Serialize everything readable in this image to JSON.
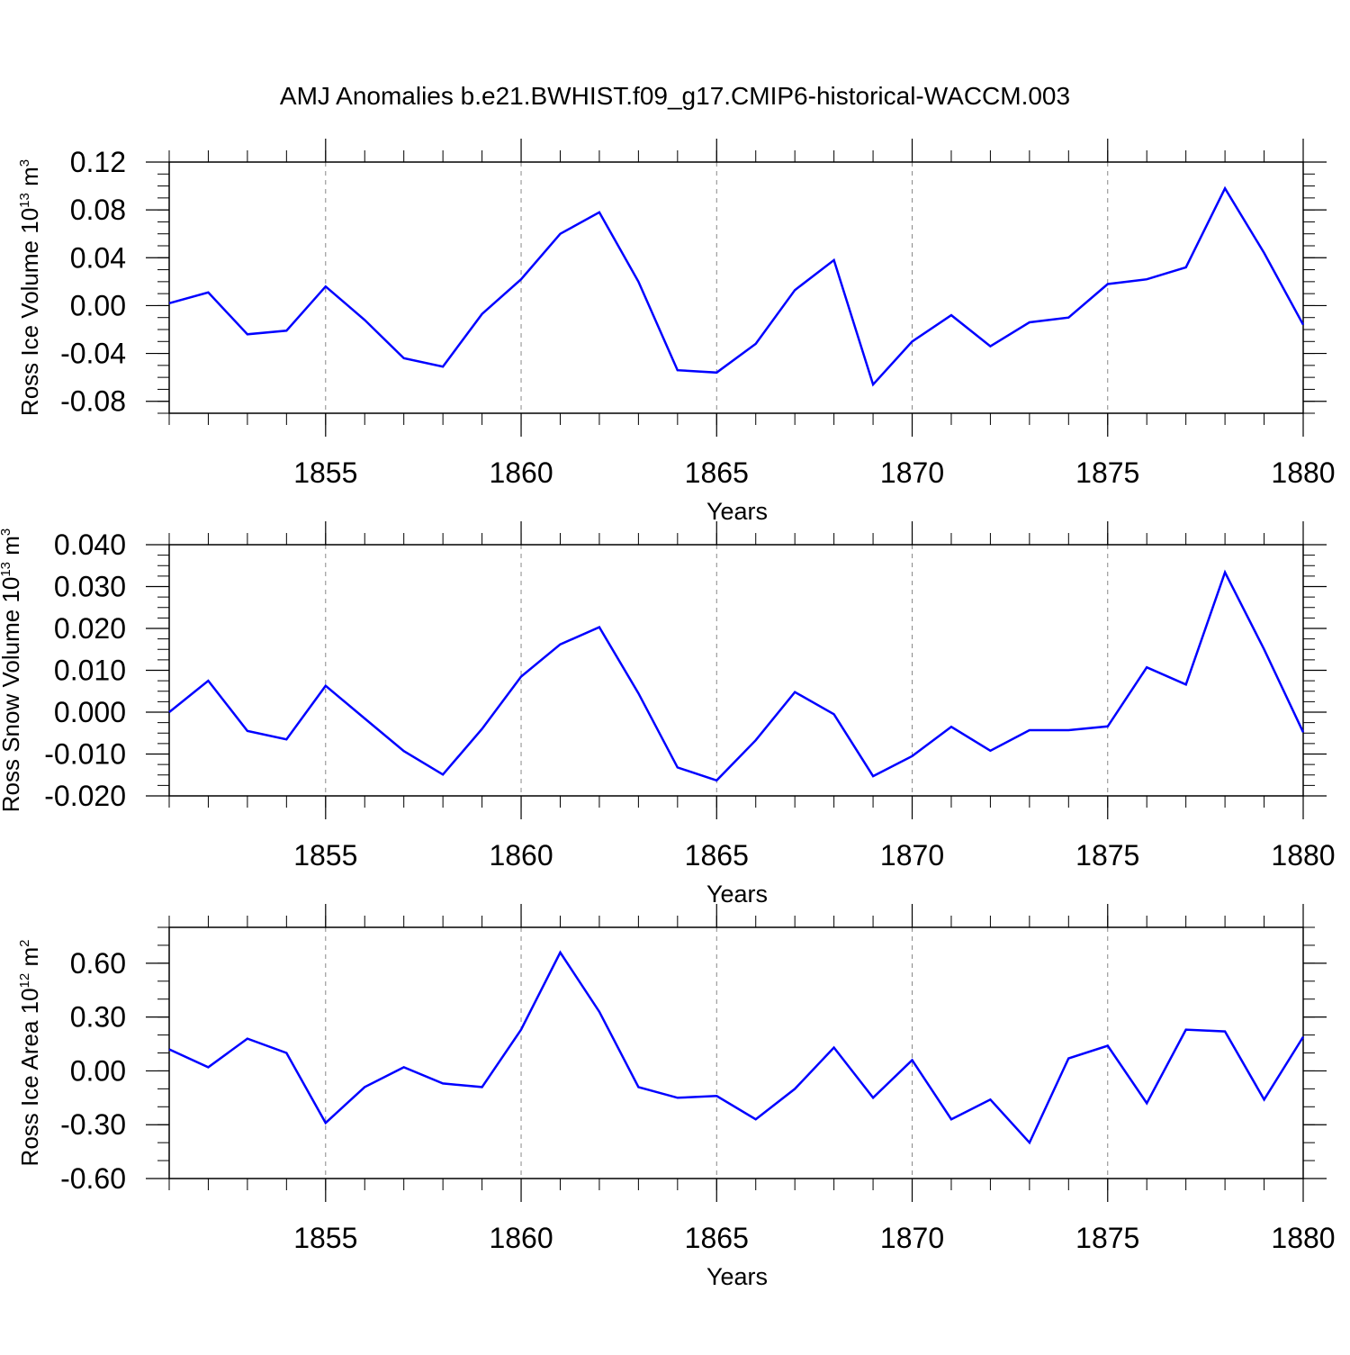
{
  "title": "AMJ Anomalies b.e21.BWHIST.f09_g17.CMIP6-historical-WACCM.003",
  "colors": {
    "line": "#0000ff",
    "axis": "#000000",
    "grid": "#888888"
  },
  "chart_data": [
    {
      "type": "line",
      "ylabel": {
        "text": "Ross Ice Volume 10",
        "sup": "13",
        "unit": " m",
        "unit_sup": "3"
      },
      "xlabel": "Years",
      "xlim": [
        1851,
        1880
      ],
      "ylim": [
        -0.09,
        0.12
      ],
      "xticks": [
        1855,
        1860,
        1865,
        1870,
        1875,
        1880
      ],
      "xtick_labels": [
        "1855",
        "1860",
        "1865",
        "1870",
        "1875",
        "1880"
      ],
      "yticks": [
        -0.08,
        -0.04,
        0.0,
        0.04,
        0.08,
        0.12
      ],
      "ytick_labels": [
        "-0.08",
        "-0.04",
        "0.00",
        "0.04",
        "0.08",
        "0.12"
      ],
      "yminor_step": 0.01,
      "grid": "vertical-dashed-at-major-x",
      "x": [
        1851,
        1852,
        1853,
        1854,
        1855,
        1856,
        1857,
        1858,
        1859,
        1860,
        1861,
        1862,
        1863,
        1864,
        1865,
        1866,
        1867,
        1868,
        1869,
        1870,
        1871,
        1872,
        1873,
        1874,
        1875,
        1876,
        1877,
        1878,
        1879,
        1880
      ],
      "values": [
        0.002,
        0.011,
        -0.024,
        -0.021,
        0.016,
        -0.012,
        -0.044,
        -0.051,
        -0.007,
        0.022,
        0.06,
        0.078,
        0.02,
        -0.054,
        -0.056,
        -0.032,
        0.013,
        0.038,
        -0.066,
        -0.03,
        -0.008,
        -0.034,
        -0.014,
        -0.01,
        0.018,
        0.022,
        0.032,
        0.098,
        0.044,
        -0.016
      ]
    },
    {
      "type": "line",
      "ylabel": {
        "text": "Ross Snow Volume 10",
        "sup": "13",
        "unit": " m",
        "unit_sup": "3"
      },
      "xlabel": "Years",
      "xlim": [
        1851,
        1880
      ],
      "ylim": [
        -0.02,
        0.04
      ],
      "xticks": [
        1855,
        1860,
        1865,
        1870,
        1875,
        1880
      ],
      "xtick_labels": [
        "1855",
        "1860",
        "1865",
        "1870",
        "1875",
        "1880"
      ],
      "yticks": [
        -0.02,
        -0.01,
        0.0,
        0.01,
        0.02,
        0.03,
        0.04
      ],
      "ytick_labels": [
        "-0.020",
        "-0.010",
        "0.000",
        "0.010",
        "0.020",
        "0.030",
        "0.040"
      ],
      "yminor_step": 0.0025,
      "grid": "vertical-dashed-at-major-x",
      "x": [
        1851,
        1852,
        1853,
        1854,
        1855,
        1856,
        1857,
        1858,
        1859,
        1860,
        1861,
        1862,
        1863,
        1864,
        1865,
        1866,
        1867,
        1868,
        1869,
        1870,
        1871,
        1872,
        1873,
        1874,
        1875,
        1876,
        1877,
        1878,
        1879,
        1880
      ],
      "values": [
        0.0,
        0.0075,
        -0.0045,
        -0.0065,
        0.0063,
        -0.0015,
        -0.0093,
        -0.0149,
        -0.004,
        0.0085,
        0.0162,
        0.0203,
        0.0045,
        -0.0132,
        -0.0163,
        -0.0067,
        0.0048,
        -0.0005,
        -0.0153,
        -0.0105,
        -0.0035,
        -0.0092,
        -0.0043,
        -0.0043,
        -0.0034,
        0.0107,
        0.0066,
        0.0334,
        0.015,
        -0.0048
      ]
    },
    {
      "type": "line",
      "ylabel": {
        "text": "Ross Ice Area 10",
        "sup": "12",
        "unit": " m",
        "unit_sup": "2"
      },
      "xlabel": "Years",
      "xlim": [
        1851,
        1880
      ],
      "ylim": [
        -0.6,
        0.8
      ],
      "xticks": [
        1855,
        1860,
        1865,
        1870,
        1875,
        1880
      ],
      "xtick_labels": [
        "1855",
        "1860",
        "1865",
        "1870",
        "1875",
        "1880"
      ],
      "yticks": [
        -0.6,
        -0.3,
        0.0,
        0.3,
        0.6
      ],
      "ytick_labels": [
        "-0.60",
        "-0.30",
        "0.00",
        "0.30",
        "0.60"
      ],
      "yminor_step": 0.1,
      "grid": "vertical-dashed-at-major-x",
      "x": [
        1851,
        1852,
        1853,
        1854,
        1855,
        1856,
        1857,
        1858,
        1859,
        1860,
        1861,
        1862,
        1863,
        1864,
        1865,
        1866,
        1867,
        1868,
        1869,
        1870,
        1871,
        1872,
        1873,
        1874,
        1875,
        1876,
        1877,
        1878,
        1879,
        1880
      ],
      "values": [
        0.12,
        0.02,
        0.18,
        0.1,
        -0.29,
        -0.09,
        0.02,
        -0.07,
        -0.09,
        0.23,
        0.66,
        0.33,
        -0.09,
        -0.15,
        -0.14,
        -0.27,
        -0.1,
        0.13,
        -0.15,
        0.06,
        -0.27,
        -0.16,
        -0.4,
        0.07,
        0.14,
        -0.18,
        0.23,
        0.22,
        -0.16,
        0.19
      ]
    }
  ]
}
